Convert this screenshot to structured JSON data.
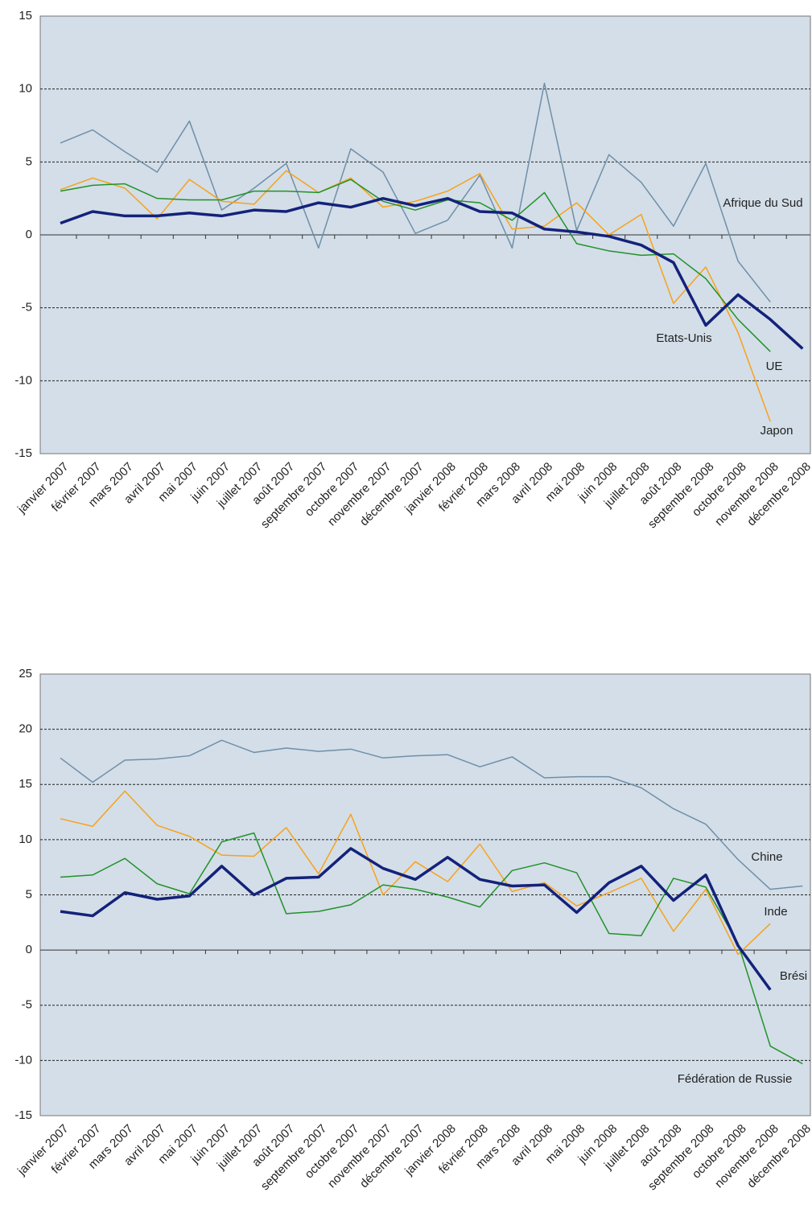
{
  "chart_data": [
    {
      "type": "line",
      "categories": [
        "janvier 2007",
        "février 2007",
        "mars 2007",
        "avril 2007",
        "mai 2007",
        "juin 2007",
        "juillet 2007",
        "août 2007",
        "septembre 2007",
        "octobre 2007",
        "novembre 2007",
        "décembre 2007",
        "janvier 2008",
        "février 2008",
        "mars 2008",
        "avril 2008",
        "mai 2008",
        "juin 2008",
        "juillet 2008",
        "août 2008",
        "septembre 2008",
        "octobre 2008",
        "novembre 2008",
        "décembre 2008"
      ],
      "ylim": [
        -15,
        15
      ],
      "yticks": [
        -15,
        -10,
        -5,
        0,
        5,
        10,
        15
      ],
      "grid": true,
      "series": [
        {
          "name": "Afrique du Sud",
          "color": "#6f8fa8",
          "values": [
            6.3,
            7.2,
            5.7,
            4.3,
            7.8,
            1.7,
            3.2,
            4.9,
            -0.9,
            5.9,
            4.3,
            0.1,
            1.0,
            4.1,
            -0.9,
            10.4,
            0.3,
            5.5,
            3.6,
            0.6,
            4.9,
            -1.8,
            -4.6,
            null
          ]
        },
        {
          "name": "Japon",
          "color": "#f7a21b",
          "values": [
            3.1,
            3.9,
            3.2,
            1.1,
            3.8,
            2.3,
            2.1,
            4.4,
            2.9,
            3.9,
            1.9,
            2.3,
            3.0,
            4.2,
            0.4,
            0.6,
            2.2,
            0.0,
            1.4,
            -4.7,
            -2.2,
            -6.7,
            -12.8,
            null
          ]
        },
        {
          "name": "UE",
          "color": "#22922a",
          "values": [
            3.0,
            3.4,
            3.5,
            2.5,
            2.4,
            2.4,
            3.0,
            3.0,
            2.9,
            3.8,
            2.3,
            1.7,
            2.4,
            2.2,
            1.0,
            2.9,
            -0.6,
            -1.1,
            -1.4,
            -1.3,
            -3.0,
            -5.8,
            -8.0,
            null
          ]
        },
        {
          "name": "Etats-Unis",
          "color": "#13227a",
          "values": [
            0.8,
            1.6,
            1.3,
            1.3,
            1.5,
            1.3,
            1.7,
            1.6,
            2.2,
            1.9,
            2.5,
            2.0,
            2.5,
            1.6,
            1.5,
            0.4,
            0.2,
            -0.1,
            -0.7,
            -1.9,
            -6.2,
            -4.1,
            -5.8,
            -7.8
          ]
        }
      ]
    },
    {
      "type": "line",
      "categories": [
        "janvier 2007",
        "février 2007",
        "mars 2007",
        "avril 2007",
        "mai 2007",
        "juin 2007",
        "juillet 2007",
        "août 2007",
        "septembre 2007",
        "octobre 2007",
        "novembre 2007",
        "décembre 2007",
        "janvier 2008",
        "février 2008",
        "mars 2008",
        "avril 2008",
        "mai 2008",
        "juin 2008",
        "juillet 2008",
        "août 2008",
        "septembre 2008",
        "octobre 2008",
        "novembre 2008",
        "décembre 2008"
      ],
      "ylim": [
        -15,
        25
      ],
      "yticks": [
        -15,
        -10,
        -5,
        0,
        5,
        10,
        15,
        20,
        25
      ],
      "grid": true,
      "series": [
        {
          "name": "Chine",
          "color": "#6f8fa8",
          "values": [
            17.4,
            15.2,
            17.2,
            17.3,
            17.6,
            19.0,
            17.9,
            18.3,
            18.0,
            18.2,
            17.4,
            17.6,
            17.7,
            16.6,
            17.5,
            15.6,
            15.7,
            15.7,
            14.7,
            12.8,
            11.4,
            8.2,
            5.5,
            5.8
          ]
        },
        {
          "name": "Inde",
          "color": "#f7a21b",
          "values": [
            11.9,
            11.2,
            14.4,
            11.3,
            10.3,
            8.6,
            8.5,
            11.1,
            6.9,
            12.3,
            5.0,
            8.0,
            6.2,
            9.6,
            5.3,
            6.1,
            4.0,
            5.2,
            6.5,
            1.7,
            5.5,
            -0.4,
            2.4,
            null
          ]
        },
        {
          "name": "Fédération de Russie",
          "color": "#22922a",
          "values": [
            6.6,
            6.8,
            8.3,
            6.0,
            5.1,
            9.8,
            10.6,
            3.3,
            3.5,
            4.1,
            5.9,
            5.5,
            4.8,
            3.9,
            7.2,
            7.9,
            7.0,
            1.5,
            1.3,
            6.5,
            5.7,
            0.6,
            -8.7,
            -10.3
          ]
        },
        {
          "name": "Brési",
          "color": "#13227a",
          "values": [
            3.5,
            3.1,
            5.2,
            4.6,
            4.9,
            7.6,
            5.0,
            6.5,
            6.6,
            9.2,
            7.4,
            6.4,
            8.4,
            6.4,
            5.8,
            5.9,
            3.4,
            6.1,
            7.6,
            4.5,
            6.8,
            0.4,
            -3.6,
            null
          ]
        }
      ]
    }
  ]
}
